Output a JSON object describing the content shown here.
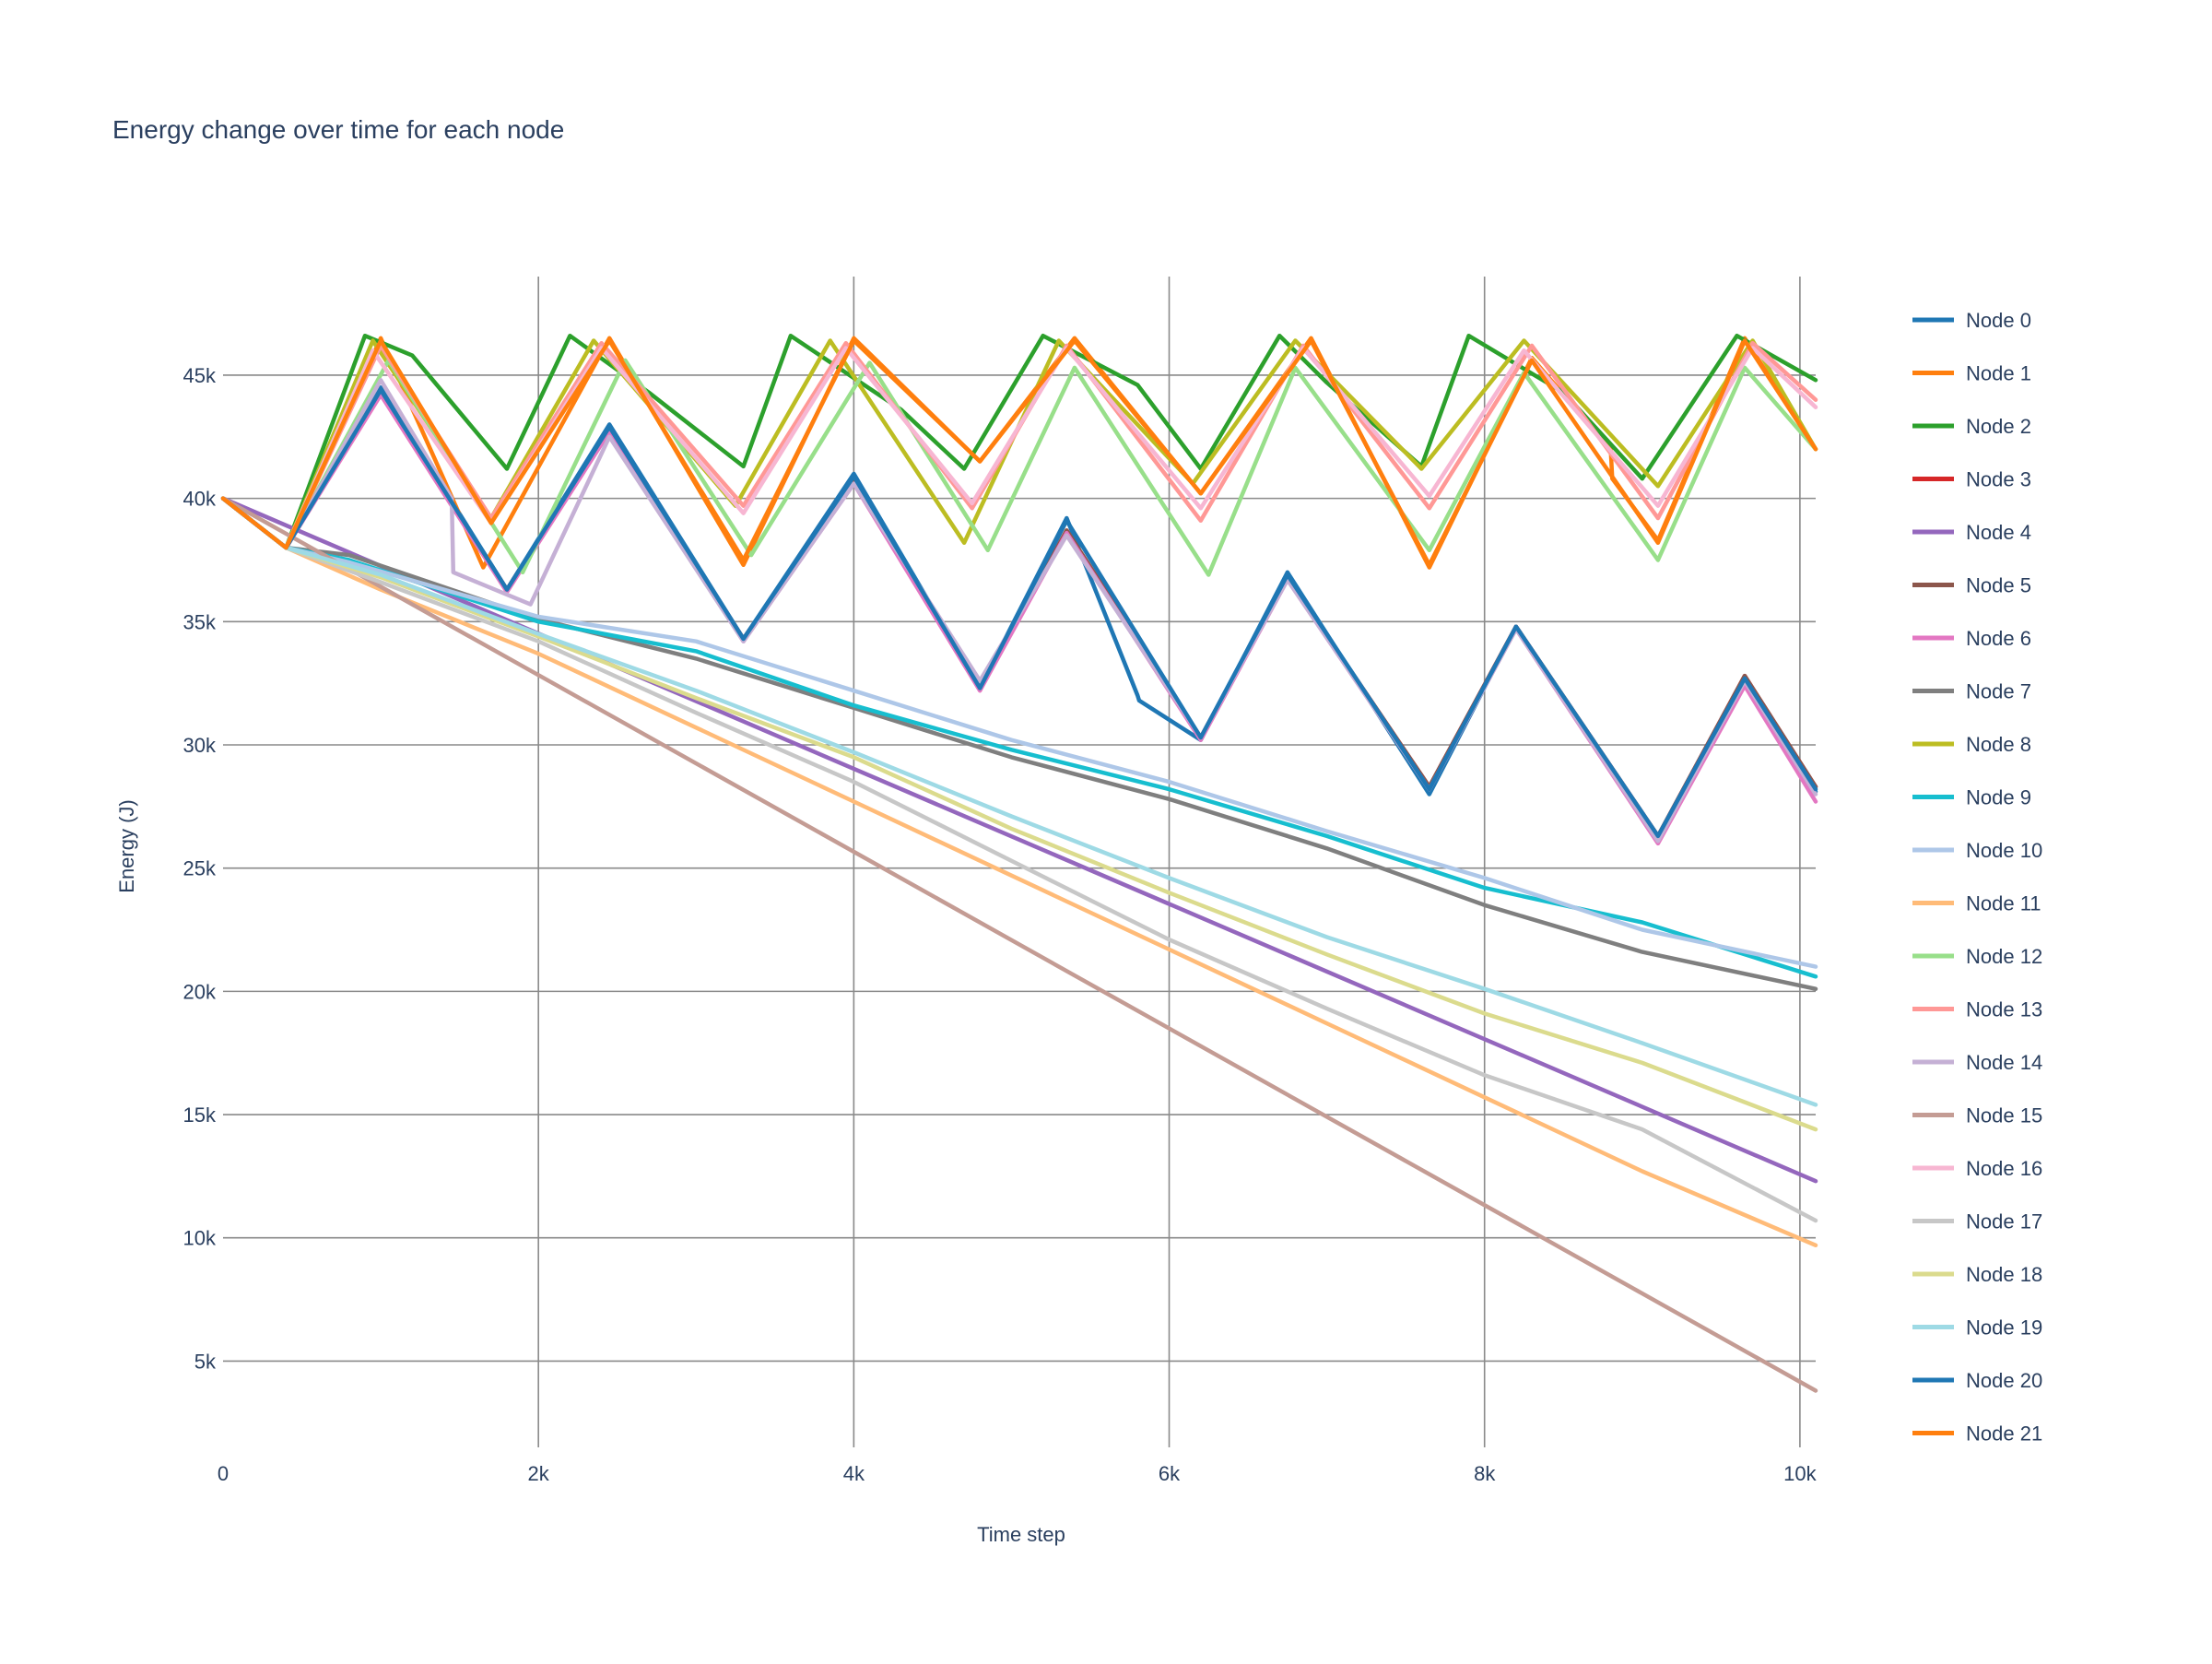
{
  "chart_data": {
    "type": "line",
    "title": "Energy change over time for each node",
    "xlabel": "Time step",
    "ylabel": "Energy (J)",
    "xlim": [
      0,
      10100
    ],
    "ylim": [
      1500,
      49000
    ],
    "xticks": [
      {
        "value": 0,
        "label": "0"
      },
      {
        "value": 2000,
        "label": "2k"
      },
      {
        "value": 4000,
        "label": "4k"
      },
      {
        "value": 6000,
        "label": "6k"
      },
      {
        "value": 8000,
        "label": "8k"
      },
      {
        "value": 10000,
        "label": "10k"
      }
    ],
    "yticks": [
      {
        "value": 5000,
        "label": "5k"
      },
      {
        "value": 10000,
        "label": "10k"
      },
      {
        "value": 15000,
        "label": "15k"
      },
      {
        "value": 20000,
        "label": "20k"
      },
      {
        "value": 25000,
        "label": "25k"
      },
      {
        "value": 30000,
        "label": "30k"
      },
      {
        "value": 35000,
        "label": "35k"
      },
      {
        "value": 40000,
        "label": "40k"
      },
      {
        "value": 45000,
        "label": "45k"
      }
    ],
    "grid": true,
    "legend_position": "right",
    "series": [
      {
        "name": "Node 0",
        "color": "#1f77b4",
        "x": [
          0,
          400,
          1000,
          1800,
          2450,
          3300,
          4000,
          4800,
          5350,
          5800,
          5810,
          6200,
          6750,
          7650,
          8200,
          9100,
          9650,
          10100
        ],
        "y": [
          40000,
          38000,
          44500,
          36300,
          43000,
          34300,
          41000,
          32300,
          39200,
          32000,
          31800,
          30200,
          37000,
          28000,
          34800,
          26200,
          32700,
          28100
        ]
      },
      {
        "name": "Node 1",
        "color": "#ff7f0e",
        "x": [
          0,
          400,
          1000,
          1650,
          2450,
          3300,
          4000,
          4800,
          5400,
          6200,
          6900,
          7650,
          8300,
          8800,
          8810,
          9100,
          9650,
          10100
        ],
        "y": [
          40000,
          38000,
          46500,
          37200,
          46500,
          37300,
          46500,
          41500,
          46500,
          40200,
          46500,
          37200,
          45700,
          42000,
          40800,
          38300,
          46500,
          42000
        ]
      },
      {
        "name": "Node 2",
        "color": "#2ca02c",
        "x": [
          0,
          400,
          900,
          1200,
          1800,
          2200,
          2700,
          3300,
          3600,
          4300,
          4700,
          5200,
          5800,
          6200,
          6700,
          7000,
          7600,
          7900,
          8500,
          9000,
          9600,
          10100
        ],
        "y": [
          40000,
          38000,
          46600,
          45800,
          41200,
          46600,
          44300,
          41300,
          46600,
          43600,
          41200,
          46600,
          44600,
          41200,
          46600,
          44700,
          41300,
          46600,
          44300,
          40800,
          46600,
          44800
        ]
      },
      {
        "name": "Node 3",
        "color": "#d62728",
        "x": [
          0,
          400,
          1000,
          1800,
          2450,
          3300,
          4000,
          4800,
          5350,
          6200,
          6750,
          7650,
          8200,
          9100,
          9650,
          10100
        ],
        "y": [
          40000,
          38000,
          44300,
          36300,
          42800,
          34300,
          40700,
          32300,
          38700,
          30300,
          36800,
          28300,
          34800,
          26300,
          32800,
          28300
        ]
      },
      {
        "name": "Node 4",
        "color": "#9467bd",
        "x": [
          0,
          10100
        ],
        "y": [
          40000,
          12300
        ]
      },
      {
        "name": "Node 5",
        "color": "#8c564b",
        "x": [
          0,
          400,
          1000,
          1800,
          2450,
          3300,
          4000,
          4800,
          5350,
          6200,
          6750,
          7650,
          8200,
          9100,
          9650,
          10100
        ],
        "y": [
          40000,
          38000,
          44300,
          36300,
          42800,
          34300,
          40700,
          32300,
          38700,
          30300,
          36800,
          28300,
          34800,
          26300,
          32800,
          28300
        ]
      },
      {
        "name": "Node 6",
        "color": "#e377c2",
        "x": [
          0,
          400,
          1000,
          1800,
          2450,
          3300,
          4000,
          4800,
          5350,
          6200,
          6750,
          7650,
          8200,
          9100,
          9650,
          10100
        ],
        "y": [
          40000,
          38000,
          44200,
          36200,
          42700,
          34200,
          40600,
          32200,
          38600,
          30200,
          36700,
          28200,
          34700,
          26000,
          32400,
          27700
        ]
      },
      {
        "name": "Node 7",
        "color": "#7f7f7f",
        "x": [
          0,
          400,
          800,
          2000,
          3000,
          4000,
          5000,
          6000,
          7000,
          8000,
          9000,
          10100
        ],
        "y": [
          40000,
          38000,
          37700,
          35100,
          33500,
          31500,
          29500,
          27800,
          25800,
          23500,
          21600,
          20100
        ]
      },
      {
        "name": "Node 8",
        "color": "#bcbd22",
        "x": [
          0,
          400,
          950,
          1700,
          2350,
          3250,
          3850,
          4700,
          5300,
          6150,
          6800,
          7600,
          8250,
          9100,
          9700,
          10100
        ],
        "y": [
          40000,
          38000,
          46400,
          39200,
          46400,
          39700,
          46400,
          38200,
          46400,
          40600,
          46400,
          41200,
          46400,
          40500,
          46400,
          42000
        ]
      },
      {
        "name": "Node 9",
        "color": "#17becf",
        "x": [
          0,
          400,
          800,
          2000,
          3000,
          4000,
          5000,
          6000,
          7000,
          8000,
          9000,
          10100
        ],
        "y": [
          40000,
          38000,
          37500,
          35000,
          33800,
          31600,
          29800,
          28200,
          26300,
          24200,
          22800,
          20600
        ]
      },
      {
        "name": "Node 10",
        "color": "#aec7e8",
        "x": [
          0,
          400,
          800,
          2000,
          3000,
          4000,
          5000,
          6000,
          7000,
          8000,
          9000,
          10100
        ],
        "y": [
          40000,
          38000,
          37400,
          35200,
          34200,
          32200,
          30200,
          28500,
          26500,
          24600,
          22500,
          21000
        ]
      },
      {
        "name": "Node 11",
        "color": "#ffbb78",
        "x": [
          0,
          400,
          1000,
          2000,
          3000,
          4000,
          5000,
          6000,
          7000,
          8000,
          9000,
          10100
        ],
        "y": [
          40000,
          38000,
          36300,
          33700,
          30700,
          27700,
          24700,
          21700,
          18700,
          15700,
          12700,
          9700
        ]
      },
      {
        "name": "Node 12",
        "color": "#98df8a",
        "x": [
          0,
          400,
          1050,
          1900,
          2550,
          3350,
          4100,
          4850,
          5400,
          6250,
          6800,
          7650,
          8250,
          9100,
          9650,
          10100
        ],
        "y": [
          40000,
          38000,
          45600,
          37000,
          45600,
          37700,
          45500,
          37900,
          45300,
          36900,
          45300,
          37900,
          45100,
          37500,
          45300,
          42000
        ]
      },
      {
        "name": "Node 13",
        "color": "#ff9896",
        "x": [
          0,
          400,
          1000,
          1700,
          2400,
          3300,
          3950,
          4750,
          5350,
          6200,
          6850,
          7650,
          8300,
          9100,
          9700,
          10100
        ],
        "y": [
          40000,
          38000,
          46200,
          39200,
          46300,
          39700,
          46300,
          39600,
          46200,
          39100,
          46200,
          39600,
          46200,
          39200,
          46300,
          44000
        ]
      },
      {
        "name": "Node 14",
        "color": "#c5b0d5",
        "x": [
          0,
          400,
          1000,
          1450,
          1460,
          1950,
          2450,
          3300,
          4000,
          4800,
          5350,
          6200,
          6750,
          7650,
          8200,
          9100,
          9650,
          10100
        ],
        "y": [
          40000,
          38000,
          44800,
          40000,
          37000,
          35700,
          42500,
          34200,
          40600,
          32600,
          38500,
          30300,
          36700,
          28200,
          34700,
          26100,
          32600,
          28000
        ]
      },
      {
        "name": "Node 15",
        "color": "#c49c94",
        "x": [
          0,
          10100
        ],
        "y": [
          40000,
          3800
        ]
      },
      {
        "name": "Node 16",
        "color": "#f7b6d2",
        "x": [
          0,
          400,
          950,
          1700,
          2400,
          3300,
          3950,
          4750,
          5350,
          6200,
          6850,
          7650,
          8250,
          9100,
          9700,
          10100
        ],
        "y": [
          40000,
          38000,
          46000,
          39000,
          46100,
          39400,
          46100,
          39800,
          46100,
          39600,
          46100,
          40100,
          46000,
          39700,
          46100,
          43700
        ]
      },
      {
        "name": "Node 17",
        "color": "#c7c7c7",
        "x": [
          0,
          400,
          1000,
          2000,
          3000,
          4000,
          5000,
          6000,
          7000,
          8000,
          9000,
          10100
        ],
        "y": [
          40000,
          38000,
          36600,
          34200,
          31300,
          28500,
          25300,
          22100,
          19300,
          16600,
          14400,
          10700
        ]
      },
      {
        "name": "Node 18",
        "color": "#dbdb8d",
        "x": [
          0,
          400,
          1000,
          2000,
          3000,
          4000,
          5000,
          6000,
          7000,
          8000,
          9000,
          10100
        ],
        "y": [
          40000,
          38000,
          36800,
          34400,
          31900,
          29500,
          26600,
          24000,
          21500,
          19100,
          17100,
          14400
        ]
      },
      {
        "name": "Node 19",
        "color": "#9edae5",
        "x": [
          0,
          400,
          1000,
          2000,
          3000,
          4000,
          5000,
          6000,
          7000,
          8000,
          9000,
          10100
        ],
        "y": [
          40000,
          38000,
          36900,
          34500,
          32200,
          29700,
          27100,
          24600,
          22200,
          20100,
          17900,
          15400
        ]
      },
      {
        "name": "Node 20",
        "color": "#1f77b4",
        "x": [
          0,
          400,
          1000,
          1800,
          2450,
          3300,
          4000,
          4800,
          5350,
          6200,
          6750,
          7650,
          8200,
          9100,
          9650,
          10100
        ],
        "y": [
          40000,
          38000,
          44400,
          36300,
          42900,
          34300,
          40900,
          32300,
          39100,
          30300,
          36900,
          28200,
          34800,
          26300,
          32700,
          28200
        ]
      },
      {
        "name": "Node 21",
        "color": "#ff7f0e",
        "x": [
          0,
          400,
          1000,
          1700,
          2450,
          3300,
          4000,
          4800,
          5400,
          6200,
          6900,
          7650,
          8300,
          9100,
          9650,
          10100
        ],
        "y": [
          40000,
          38000,
          46400,
          39000,
          46400,
          37500,
          46400,
          41500,
          46400,
          40200,
          46400,
          37300,
          45600,
          38200,
          46400,
          42000
        ]
      }
    ]
  }
}
